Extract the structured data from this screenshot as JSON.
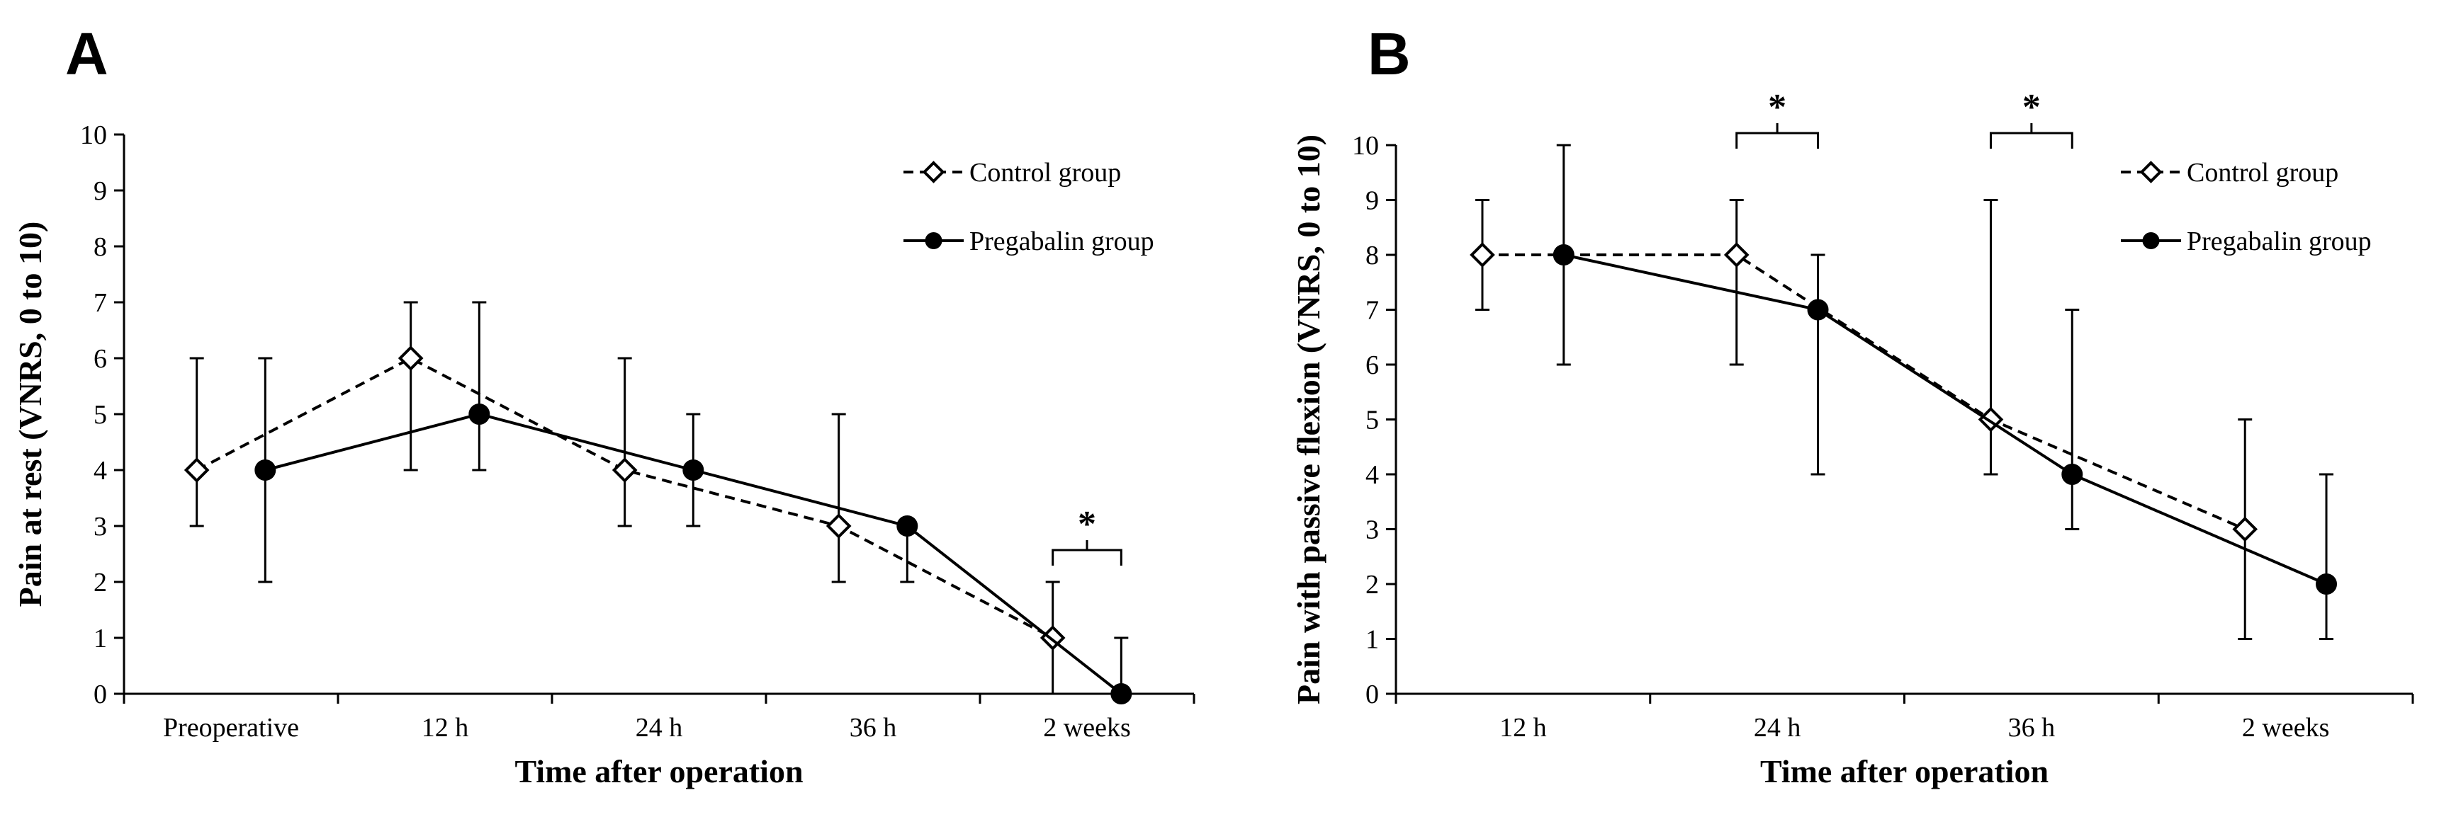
{
  "chart_data": [
    {
      "panel": "A",
      "type": "line",
      "categories": [
        "Preoperative",
        "12 h",
        "24 h",
        "36 h",
        "2 weeks"
      ],
      "xlabel": "Time after operation",
      "ylabel": "Pain at rest (VNRS, 0 to 10)",
      "ylim": [
        0,
        10
      ],
      "yticks": [
        "0",
        "1",
        "2",
        "3",
        "4",
        "5",
        "6",
        "7",
        "8",
        "9",
        "10"
      ],
      "legend_position": "top-right",
      "series": [
        {
          "name": "Control group",
          "marker": "diamond-open",
          "line": "dashed",
          "values": [
            4,
            6,
            4,
            3,
            1
          ],
          "err_low": [
            3,
            4,
            3,
            2,
            0
          ],
          "err_high": [
            6,
            7,
            6,
            5,
            2
          ]
        },
        {
          "name": "Pregabalin group",
          "marker": "circle-filled",
          "line": "solid",
          "values": [
            4,
            5,
            4,
            3,
            0
          ],
          "err_low": [
            2,
            4,
            3,
            2,
            0
          ],
          "err_high": [
            6,
            7,
            5,
            3,
            1
          ]
        }
      ],
      "significance": [
        {
          "category_index": 4,
          "label": "*"
        }
      ]
    },
    {
      "panel": "B",
      "type": "line",
      "categories": [
        "12 h",
        "24 h",
        "36 h",
        "2 weeks"
      ],
      "xlabel": "Time after operation",
      "ylabel": "Pain with passive flexion (VNRS, 0 to 10)",
      "ylim": [
        0,
        10
      ],
      "yticks": [
        "0",
        "1",
        "2",
        "3",
        "4",
        "5",
        "6",
        "7",
        "8",
        "9",
        "10"
      ],
      "legend_position": "top-right",
      "series": [
        {
          "name": "Control group",
          "marker": "diamond-open",
          "line": "dashed",
          "values": [
            8,
            8,
            5,
            3
          ],
          "err_low": [
            7,
            6,
            4,
            1
          ],
          "err_high": [
            9,
            9,
            9,
            5
          ]
        },
        {
          "name": "Pregabalin group",
          "marker": "circle-filled",
          "line": "solid",
          "values": [
            8,
            7,
            4,
            2
          ],
          "err_low": [
            6,
            4,
            3,
            1
          ],
          "err_high": [
            10,
            8,
            7,
            4
          ]
        }
      ],
      "significance": [
        {
          "category_index": 1,
          "label": "*"
        },
        {
          "category_index": 2,
          "label": "*"
        }
      ]
    }
  ]
}
